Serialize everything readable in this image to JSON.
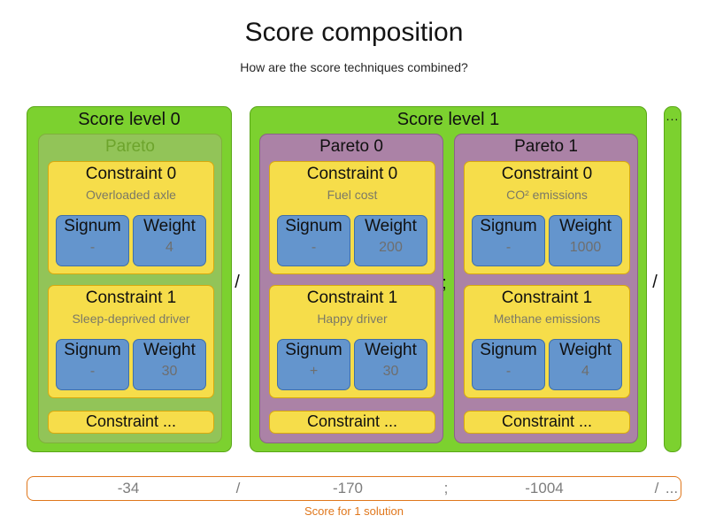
{
  "header": {
    "title": "Score composition",
    "subtitle": "How are the score techniques combined?"
  },
  "labels": {
    "signum": "Signum",
    "weight": "Weight"
  },
  "diagram": {
    "level0": {
      "label": "Score level 0",
      "pareto": {
        "label": "Pareto",
        "constraints": [
          {
            "title": "Constraint 0",
            "name": "Overloaded axle",
            "signum": "-",
            "weight": "4"
          },
          {
            "title": "Constraint 1",
            "name": "Sleep-deprived driver",
            "signum": "-",
            "weight": "30"
          }
        ],
        "more_label": "Constraint ..."
      }
    },
    "sep_after_level0": "/",
    "level1": {
      "label": "Score level 1",
      "sep_between_paretos": ";",
      "paretos": [
        {
          "label": "Pareto 0",
          "constraints": [
            {
              "title": "Constraint 0",
              "name": "Fuel cost",
              "signum": "-",
              "weight": "200"
            },
            {
              "title": "Constraint 1",
              "name": "Happy driver",
              "signum": "+",
              "weight": "30"
            }
          ],
          "more_label": "Constraint ..."
        },
        {
          "label": "Pareto 1",
          "constraints": [
            {
              "title": "Constraint 0",
              "name": "CO² emissions",
              "signum": "-",
              "weight": "1000"
            },
            {
              "title": "Constraint 1",
              "name": "Methane emissions",
              "signum": "-",
              "weight": "4"
            }
          ],
          "more_label": "Constraint ..."
        }
      ]
    },
    "sep_after_level1": "/",
    "more_levels_label": "..."
  },
  "score_bar": {
    "values": [
      "-34",
      "/",
      "-170",
      ";",
      "-1004",
      "/",
      "..."
    ],
    "caption": "Score for 1 solution"
  },
  "colors": {
    "level_green": "#7cd12f",
    "level_green_border": "#5aa718",
    "pareto_faded_green": "#92c458",
    "pareto_faded_text": "#6da42c",
    "pareto_purple": "#ab82a6",
    "constraint_yellow": "#f6dd4a",
    "constraint_yellow_border": "#d8a90e",
    "signum_weight_blue": "#6495cd",
    "value_gray": "#6e6e6e",
    "score_orange": "#e0771c"
  }
}
